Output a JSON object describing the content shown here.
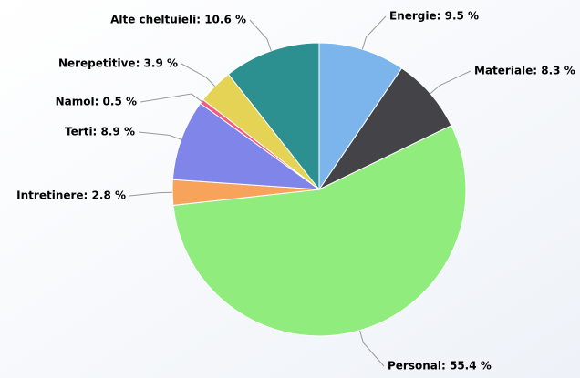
{
  "chart_data": {
    "type": "pie",
    "values": [
      9.5,
      8.3,
      55.4,
      2.8,
      8.9,
      0.5,
      3.9,
      10.6
    ],
    "value_labels": [
      "Energie: 9.5 %",
      "Materiale: 8.3 %",
      "Personal: 55.4 %",
      "Intretinere: 2.8 %",
      "Terti: 8.9 %",
      "Namol: 0.5 %",
      "Nerepetitive: 3.9 %",
      "Alte cheltuieli: 10.6 %"
    ],
    "colors": [
      "#7cb5ec",
      "#434348",
      "#90ed7d",
      "#f7a35c",
      "#8085e9",
      "#f15c80",
      "#e4d354",
      "#2b908f"
    ]
  }
}
